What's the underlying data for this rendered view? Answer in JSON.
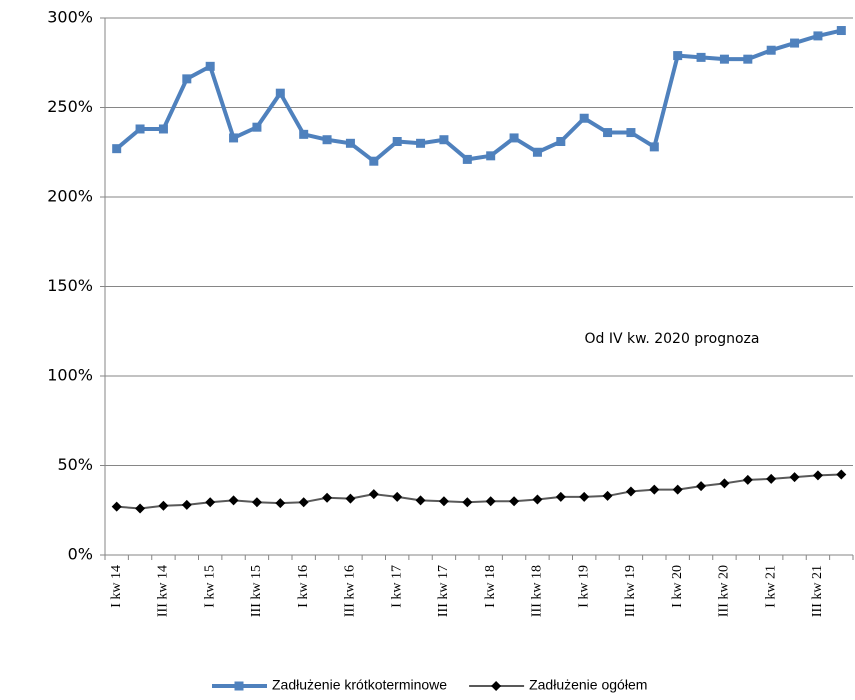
{
  "chart_data": {
    "type": "line",
    "categories": [
      "I kw 14",
      null,
      "III kw 14",
      null,
      "I kw 15",
      null,
      "III kw 15",
      null,
      "I kw 16",
      null,
      "III kw 16",
      null,
      "I kw 17",
      null,
      "III kw 17",
      null,
      "I kw 18",
      null,
      "III kw 18",
      null,
      "I kw 19",
      null,
      "III kw 19",
      null,
      "I kw 20",
      null,
      "III kw 20",
      null,
      "I kw 21",
      null,
      "III kw 21",
      null
    ],
    "series": [
      {
        "name": "Zadłużenie krótkoterminowe",
        "color": "#4f81bd",
        "marker": "square",
        "values": [
          227,
          238,
          238,
          266,
          273,
          233,
          239,
          258,
          235,
          232,
          230,
          220,
          231,
          230,
          232,
          221,
          223,
          233,
          225,
          231,
          244,
          236,
          236,
          228,
          279,
          278,
          277,
          277,
          282,
          286,
          290,
          293
        ]
      },
      {
        "name": "Zadłużenie ogółem",
        "color": "#595959",
        "marker": "diamond",
        "values": [
          27,
          26,
          27.5,
          28,
          29.5,
          30.5,
          29.5,
          29,
          29.5,
          32,
          31.5,
          34,
          32.5,
          30.5,
          30,
          29.5,
          30,
          30,
          31,
          32.5,
          32.5,
          33,
          35.5,
          36.5,
          36.5,
          38.5,
          40,
          42,
          42.5,
          43.5,
          44.5,
          45
        ]
      }
    ],
    "ylim": [
      0,
      300
    ],
    "yticks": [
      {
        "value": 0,
        "label": "0%"
      },
      {
        "value": 50,
        "label": "50%"
      },
      {
        "value": 100,
        "label": "100%"
      },
      {
        "value": 150,
        "label": "150%"
      },
      {
        "value": 200,
        "label": "200%"
      },
      {
        "value": 250,
        "label": "250%"
      },
      {
        "value": 300,
        "label": "300%"
      }
    ],
    "grid": true,
    "annotation": "Od IV kw. 2020 prognoza",
    "legend": "bottom"
  }
}
